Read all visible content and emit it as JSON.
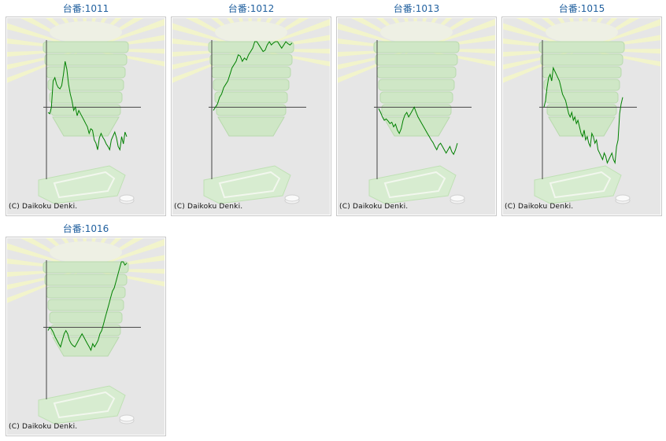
{
  "cards": [
    {
      "title": "台番:1011",
      "copyright": "(C) Daikoku Denki.",
      "chart_data": {
        "type": "line",
        "grid": false,
        "series_color": "#008000",
        "y_baseline": 0,
        "ylim": [
          -1100,
          1000
        ],
        "values": [
          -80,
          -100,
          0,
          400,
          450,
          350,
          300,
          280,
          330,
          500,
          700,
          580,
          350,
          200,
          100,
          -50,
          0,
          -130,
          -50,
          -100,
          -150,
          -200,
          -250,
          -300,
          -400,
          -330,
          -350,
          -500,
          -550,
          -650,
          -470,
          -400,
          -460,
          -500,
          -560,
          -600,
          -650,
          -500,
          -440,
          -380,
          -470,
          -600,
          -650,
          -450,
          -560,
          -380,
          -450
        ]
      }
    },
    {
      "title": "台番:1012",
      "copyright": "(C) Daikoku Denki.",
      "chart_data": {
        "type": "line",
        "grid": false,
        "series_color": "#008000",
        "y_baseline": 0,
        "ylim": [
          -1100,
          1000
        ],
        "values": [
          -50,
          0,
          50,
          150,
          200,
          300,
          350,
          400,
          500,
          600,
          650,
          700,
          800,
          780,
          700,
          750,
          720,
          800,
          850,
          900,
          1000,
          1000,
          950,
          900,
          850,
          870,
          950,
          1000,
          950,
          980,
          1000,
          1000,
          950,
          900,
          950,
          1000,
          970,
          950,
          980
        ]
      }
    },
    {
      "title": "台番:1013",
      "copyright": "(C) Daikoku Denki.",
      "chart_data": {
        "type": "line",
        "grid": false,
        "series_color": "#008000",
        "y_baseline": 0,
        "ylim": [
          -1100,
          1000
        ],
        "values": [
          -20,
          -80,
          -150,
          -200,
          -180,
          -210,
          -250,
          -230,
          -300,
          -260,
          -350,
          -400,
          -330,
          -200,
          -120,
          -80,
          -150,
          -100,
          -50,
          0,
          -80,
          -150,
          -200,
          -250,
          -300,
          -350,
          -400,
          -450,
          -500,
          -540,
          -600,
          -650,
          -580,
          -550,
          -600,
          -650,
          -700,
          -650,
          -600,
          -680,
          -720,
          -650,
          -550
        ]
      }
    },
    {
      "title": "台番:1015",
      "copyright": "(C) Daikoku Denki.",
      "chart_data": {
        "type": "line",
        "grid": false,
        "series_color": "#008000",
        "y_baseline": 0,
        "ylim": [
          -1100,
          1000
        ],
        "values": [
          0,
          100,
          300,
          450,
          500,
          400,
          600,
          550,
          500,
          450,
          400,
          300,
          200,
          150,
          100,
          0,
          -100,
          -150,
          -80,
          -200,
          -150,
          -250,
          -200,
          -300,
          -400,
          -450,
          -350,
          -500,
          -450,
          -550,
          -600,
          -400,
          -450,
          -550,
          -500,
          -650,
          -700,
          -750,
          -800,
          -700,
          -750,
          -850,
          -800,
          -750,
          -700,
          -800,
          -850,
          -600,
          -500,
          -100,
          50,
          150
        ]
      }
    },
    {
      "title": "台番:1016",
      "copyright": "(C) Daikoku Denki.",
      "chart_data": {
        "type": "line",
        "grid": false,
        "series_color": "#008000",
        "y_baseline": 0,
        "ylim": [
          -1100,
          1000
        ],
        "values": [
          -50,
          0,
          -30,
          -80,
          -150,
          -200,
          -250,
          -300,
          -200,
          -100,
          -50,
          -100,
          -200,
          -250,
          -280,
          -300,
          -250,
          -200,
          -150,
          -100,
          -150,
          -200,
          -250,
          -300,
          -350,
          -250,
          -300,
          -250,
          -200,
          -100,
          -50,
          50,
          150,
          250,
          350,
          450,
          550,
          600,
          700,
          800,
          900,
          1000,
          1000,
          950,
          980
        ]
      }
    }
  ]
}
